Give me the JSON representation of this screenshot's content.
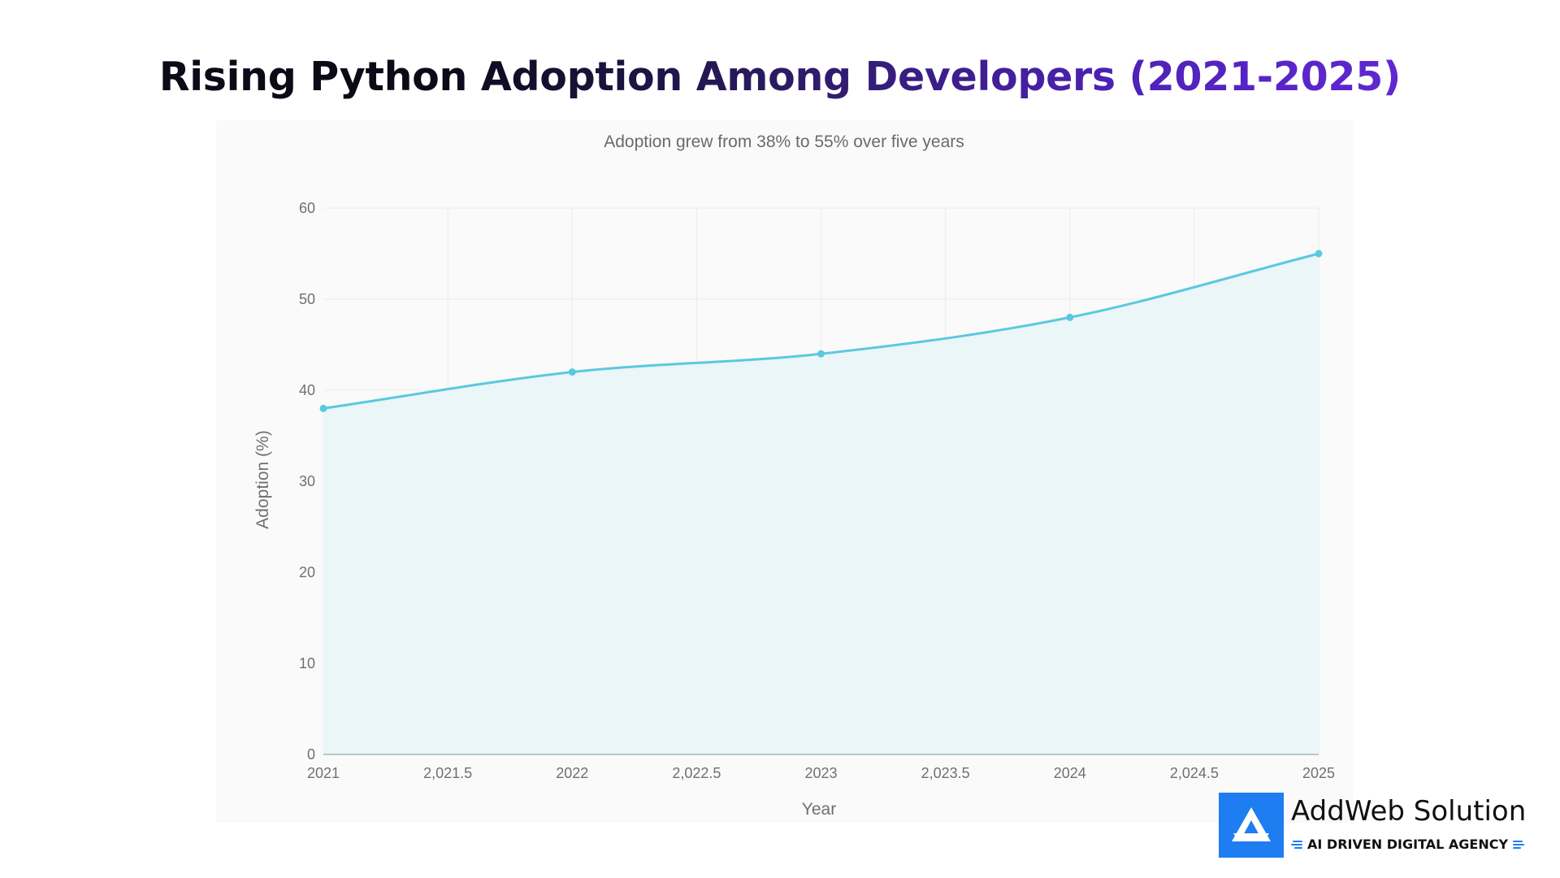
{
  "page": {
    "title": "Rising Python Adoption Among Developers (2021-2025)"
  },
  "brand": {
    "name": "AddWeb Solution",
    "tagline": "AI DRIVEN DIGITAL AGENCY",
    "logo_icon": "addweb-logo-icon",
    "accent_color": "#1e7df0"
  },
  "chart_data": {
    "type": "area",
    "title": "",
    "subtitle": "Adoption grew from 38% to 55% over five years",
    "xlabel": "Year",
    "ylabel": "Adoption (%)",
    "x": [
      2021,
      2022,
      2023,
      2024,
      2025
    ],
    "series": [
      {
        "values": [
          38,
          42,
          44,
          48,
          55
        ],
        "line_color": "#5bc8e0",
        "fill_color": "#eaf6f7"
      }
    ],
    "xlim": [
      2021,
      2025
    ],
    "ylim": [
      0,
      60
    ],
    "x_ticks": [
      2021,
      2021.5,
      2022,
      2022.5,
      2023,
      2023.5,
      2024,
      2024.5,
      2025
    ],
    "x_tick_labels": [
      "2021",
      "2,021.5",
      "2022",
      "2,022.5",
      "2023",
      "2,023.5",
      "2024",
      "2,024.5",
      "2025"
    ],
    "y_ticks": [
      0,
      10,
      20,
      30,
      40,
      50,
      60
    ],
    "y_tick_labels": [
      "0",
      "10",
      "20",
      "30",
      "40",
      "50",
      "60"
    ],
    "grid": true,
    "curve": "smooth",
    "markers": true,
    "legend": "none"
  }
}
